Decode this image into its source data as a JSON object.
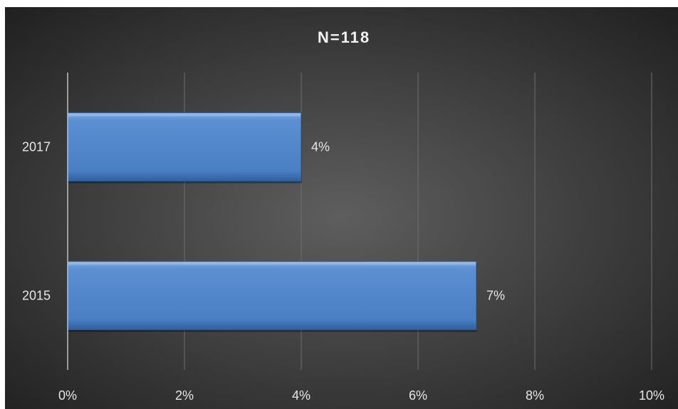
{
  "chart_data": {
    "type": "bar",
    "orientation": "horizontal",
    "title": "N=118",
    "categories": [
      "2017",
      "2015"
    ],
    "values": [
      4,
      7
    ],
    "data_labels": [
      "4%",
      "7%"
    ],
    "xlim": [
      0,
      10
    ],
    "x_ticks": [
      "0%",
      "2%",
      "4%",
      "6%",
      "8%",
      "10%"
    ],
    "xlabel": "",
    "ylabel": "",
    "grid": "vertical",
    "legend": "none",
    "colors": {
      "bar": "#4f81bd",
      "background": "#595959",
      "gridline": "#6e6e6e",
      "text": "#e6e6e6"
    }
  }
}
